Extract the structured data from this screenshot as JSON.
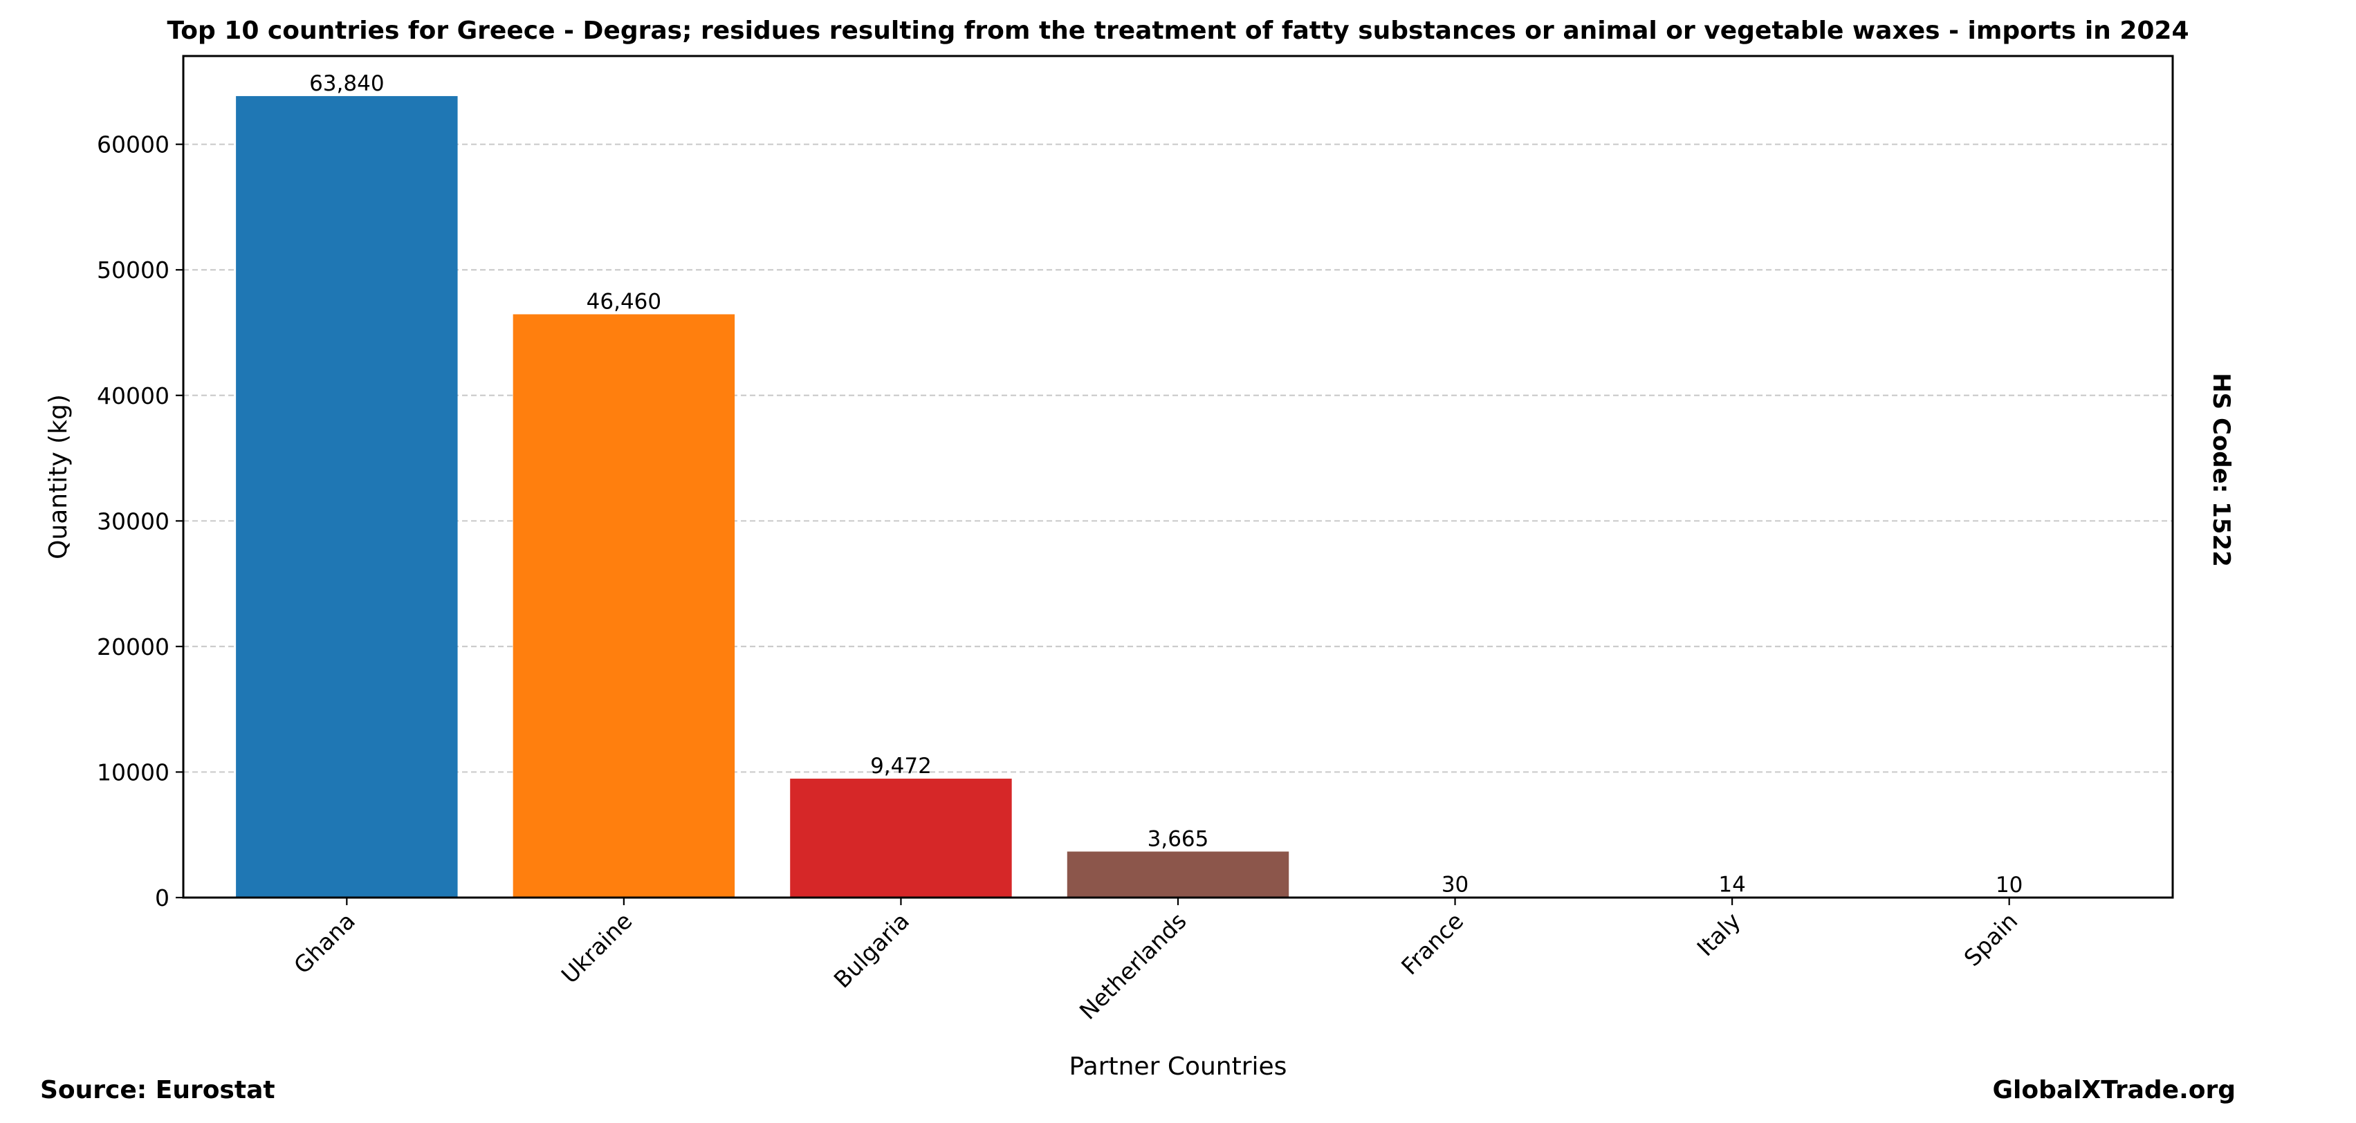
{
  "chart_data": {
    "type": "bar",
    "title": "Top 10 countries for Greece - Degras; residues resulting from the treatment of fatty substances or animal or vegetable waxes - imports in 2024",
    "xlabel": "Partner Countries",
    "ylabel": "Quantity (kg)",
    "categories": [
      "Ghana",
      "Ukraine",
      "Bulgaria",
      "Netherlands",
      "France",
      "Italy",
      "Spain"
    ],
    "values": [
      63840,
      46460,
      9472,
      3665,
      30,
      14,
      10
    ],
    "value_labels": [
      "63,840",
      "46,460",
      "9,472",
      "3,665",
      "30",
      "14",
      "10"
    ],
    "colors": [
      "#1f77b4",
      "#ff7f0e",
      "#d62728",
      "#8c564b",
      "#7f7f7f",
      "#17becf",
      "#aec7e8"
    ],
    "ylim": [
      0,
      67032
    ],
    "yticks": [
      0,
      10000,
      20000,
      30000,
      40000,
      50000,
      60000
    ],
    "ytick_labels": [
      "0",
      "10000",
      "20000",
      "30000",
      "40000",
      "50000",
      "60000"
    ],
    "grid": "y-dashed",
    "xtick_rotation_deg": 45,
    "side_annotation": "HS Code: 1522",
    "source": "Source: Eurostat",
    "brand": "GlobalXTrade.org"
  }
}
